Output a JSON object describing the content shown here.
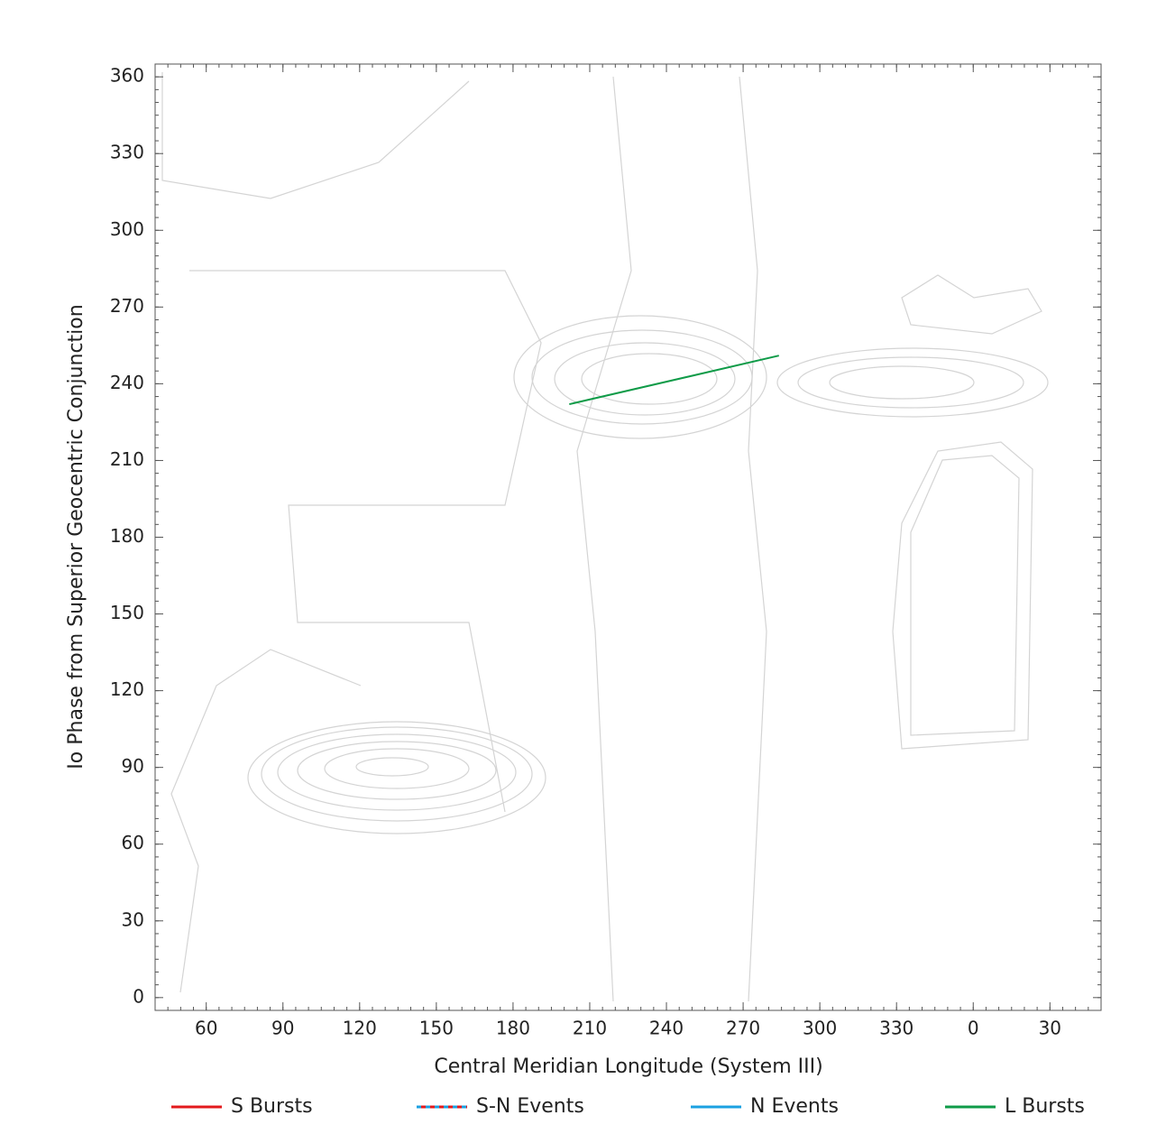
{
  "chart_data": {
    "type": "line",
    "xlabel": "Central Meridian Longitude (System III)",
    "ylabel": "Io Phase from Superior Geocentric Conjunction",
    "xlim": [
      40,
      410
    ],
    "xticks": [
      60,
      90,
      120,
      150,
      180,
      210,
      240,
      270,
      300,
      330,
      {
        "value": 360,
        "label": "0"
      },
      {
        "value": 390,
        "label": "30"
      }
    ],
    "ylim": [
      -5,
      365
    ],
    "yticks": [
      0,
      30,
      60,
      90,
      120,
      150,
      180,
      210,
      240,
      270,
      300,
      330,
      360
    ],
    "legend": "bottom",
    "series": [
      {
        "name": "S Bursts",
        "color": "#e31a1c",
        "x": [],
        "values": []
      },
      {
        "name": "S-N Events",
        "color": "#e31a1c",
        "dash_color": "#1ba1e2",
        "x": [],
        "values": []
      },
      {
        "name": "N Events",
        "color": "#1ba1e2",
        "x": [],
        "values": []
      },
      {
        "name": "L Bursts",
        "color": "#0f9b48",
        "x": [
          202,
          284
        ],
        "values": [
          232,
          251
        ]
      }
    ]
  }
}
